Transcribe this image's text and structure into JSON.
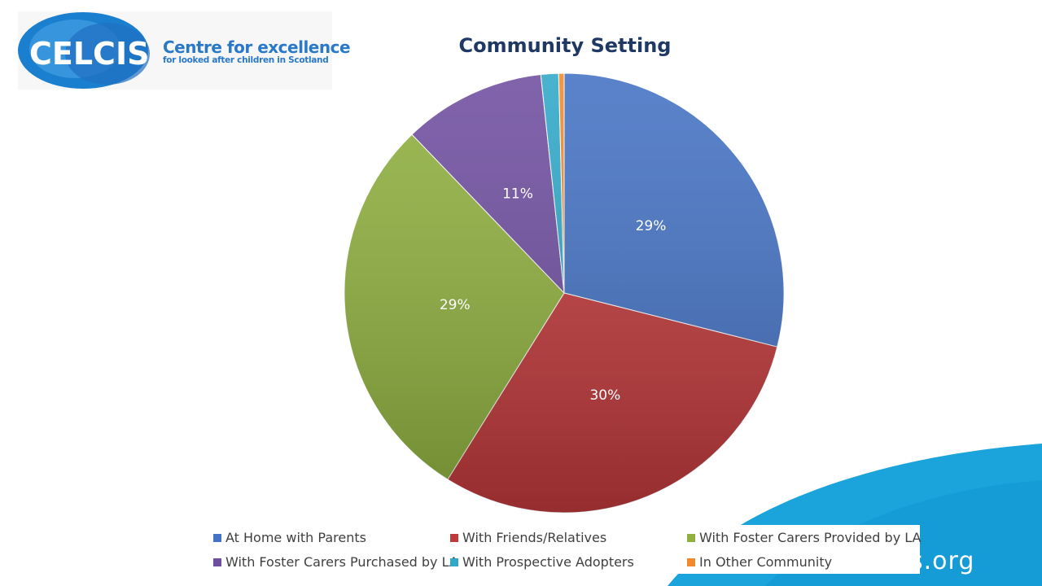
{
  "logo": {
    "wordmark": "CELCIS",
    "title": "Centre for excellence",
    "subtitle": "for looked after children in Scotland"
  },
  "footer": {
    "url_fragment": "s.org"
  },
  "colors": {
    "brand_blue": "#2a79c8",
    "swoosh": "#1ba3dc"
  },
  "chart_data": {
    "type": "pie",
    "title": "Community Setting",
    "legend_position": "bottom",
    "series": [
      {
        "name": "At Home with Parents",
        "value": 29,
        "label": "29%",
        "color": "#4472c4"
      },
      {
        "name": "With Friends/Relatives",
        "value": 30,
        "label": "30%",
        "color": "#c0393b"
      },
      {
        "name": "With Foster Carers Provided by LA",
        "value": 29,
        "label": "29%",
        "color": "#8fb03e"
      },
      {
        "name": "With Foster Carers Purchased by LA",
        "value": 10.5,
        "label": "11%",
        "color": "#6f4ea0"
      },
      {
        "name": "With Prospective Adopters",
        "value": 1.3,
        "label": "",
        "color": "#2fa8c9"
      },
      {
        "name": "In Other Community",
        "value": 0.4,
        "label": "",
        "color": "#f08a2c"
      }
    ]
  }
}
